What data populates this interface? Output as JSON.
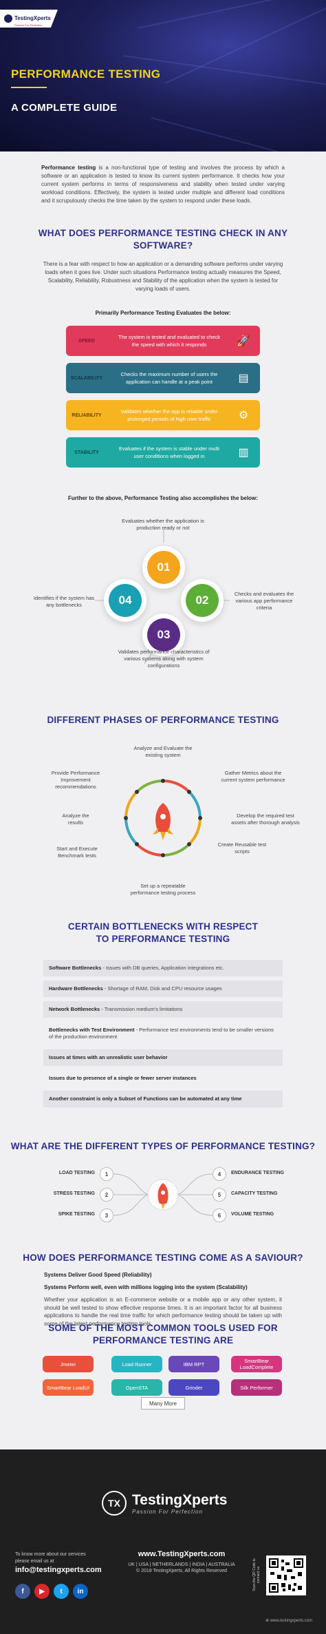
{
  "brand": {
    "name": "TestingXperts",
    "tagline": "Passion For Perfection"
  },
  "hero": {
    "title": "PERFORMANCE TESTING",
    "subtitle": "A COMPLETE GUIDE"
  },
  "intro": {
    "lead": "Performance testing",
    "text": " is a non-functional type of testing and involves the process by which a software or an application is tested to know its current system performance. It checks how your current system performs in terms of responsiveness and stability when tested under varying workload conditions. Effectively, the system is tested under multiple and different load conditions and it scrupulously checks the time taken by the system to respond under these loads."
  },
  "check": {
    "heading": "WHAT DOES PERFORMANCE TESTING CHECK IN ANY SOFTWARE?",
    "text": "There is a fear with respect to how an application or a demanding software performs under varying loads when it goes live. Under such situations Performance testing actually measures the Speed, Scalability, Reliability, Robustness and Stability of the application when the system is tested for varying loads of users.",
    "subheading": "Primarily Performance Testing Evaluates the below:",
    "items": [
      {
        "label": "SPEED",
        "desc": "The system is tested and evaluated to check the speed with which it responds",
        "icon": "rocket-icon",
        "color": "#e13a5a",
        "label_color": "#8c1030"
      },
      {
        "label": "SCALABILITY",
        "desc": "Checks the maximum number of users the application can handle at a peak point",
        "icon": "document-icon",
        "color": "#2b6f86",
        "label_color": "#0e3847"
      },
      {
        "label": "RELIABILITY",
        "desc": "Validates whether the app is reliable under prolonged periods of high user traffic",
        "icon": "gear-icon",
        "color": "#f6b520",
        "label_color": "#6b4600"
      },
      {
        "label": "STABILITY",
        "desc": "Evaluates if the system is stable under multi user conditions when logged in",
        "icon": "bar-chart-icon",
        "color": "#1eaaa3",
        "label_color": "#0a4a47"
      }
    ]
  },
  "accomplish": {
    "heading": "Further to the above, Performance Testing also accomplishes the below:",
    "items": [
      {
        "num": "01",
        "text": "Evaluates whether the application is production ready or not",
        "color": "#f4a51c"
      },
      {
        "num": "02",
        "text": "Checks and evaluates the various app performance criteria",
        "color": "#5cae37"
      },
      {
        "num": "03",
        "text": "Validates performance characteristics of various systems along with system configurations",
        "color": "#5b2c86"
      },
      {
        "num": "04",
        "text": "Identifies if the system has any bottlenecks",
        "color": "#1aa0b4"
      }
    ]
  },
  "phases": {
    "heading": "DIFFERENT PHASES OF PERFORMANCE TESTING",
    "items": [
      "Analyze and Evaluate the existing system",
      "Gather Metrics about the current system performance",
      "Develop the required test assets after thorough analysis",
      "Create Reusable test scripts",
      "Set up a repeatable performance testing process",
      "Start and Execute Benchmark tests",
      "Analyze the results",
      "Provide Performance Improvement recommendations"
    ]
  },
  "bottlenecks": {
    "heading_1": "CERTAIN BOTTLENECKS WITH RESPECT",
    "heading_2": "TO PERFORMANCE TESTING",
    "items": [
      {
        "title": "Software Bottlenecks",
        "text": "  -  Issues with DB queries, Application integrations etc."
      },
      {
        "title": "Hardware Bottlenecks",
        "text": "  -  Shortage of RAM, Disk and CPU resource usages"
      },
      {
        "title": "Network Bottlenecks",
        "text": "  -  Transmission medium's limitations"
      },
      {
        "title": "Bottlenecks with Test Environment",
        "text": "  -  Performance test environments tend to be smaller versions of the production environment"
      },
      {
        "title": "Issues at times with an unrealistic user behavior",
        "text": ""
      },
      {
        "title": "Issues due to presence of a single or fewer server instances",
        "text": ""
      },
      {
        "title": "Another constraint is only a Subset of Functions can be automated at any time",
        "text": ""
      }
    ]
  },
  "types": {
    "heading": "WHAT ARE THE DIFFERENT TYPES OF PERFORMANCE TESTING?",
    "left": [
      {
        "num": "1",
        "label": "LOAD TESTING"
      },
      {
        "num": "2",
        "label": "STRESS TESTING"
      },
      {
        "num": "3",
        "label": "SPIKE TESTING"
      }
    ],
    "right": [
      {
        "num": "4",
        "label": "ENDURANCE TESTING"
      },
      {
        "num": "5",
        "label": "CAPACITY TESTING"
      },
      {
        "num": "6",
        "label": "VOLUME TESTING"
      }
    ]
  },
  "saviour": {
    "heading": "HOW DOES PERFORMANCE TESTING COME AS A SAVIOUR?",
    "line1": "Systems Deliver Good Speed (Reliability)",
    "line2": "Systems Perform well, even with millions logging into the system (Scalability)",
    "text": "Whether your application is an E-commerce website or a mobile app or any other system, it should be well tested to show effective response times. It is an important factor for all business applications to handle the real time traffic for which performance testing should be taken up with some of the latest performance testing tools."
  },
  "tools": {
    "heading_1": "SOME OF THE MOST COMMON TOOLS USED FOR",
    "heading_2": "PERFORMANCE TESTING ARE",
    "items": [
      {
        "name": "Jmeter",
        "color": "#e9503a"
      },
      {
        "name": "Load Runner",
        "color": "#27b5c4"
      },
      {
        "name": "IBM RPT",
        "color": "#6b48b8"
      },
      {
        "name": "SmartBear LoadComplete",
        "color": "#d8357f"
      },
      {
        "name": "SmartBear LoadUI",
        "color": "#f2643a"
      },
      {
        "name": "OpenSTA",
        "color": "#29b6a8"
      },
      {
        "name": "Grinder",
        "color": "#4b46c2"
      },
      {
        "name": "Silk Performer",
        "color": "#b8307a"
      }
    ],
    "more_label": "Many More"
  },
  "footer": {
    "contact_line_1": "To know more about our services",
    "contact_line_2": "please email us at",
    "email": "info@testingxperts.com",
    "website": "www.TestingXperts.com",
    "locations": "UK | USA | NETHERLANDS | INDIA | AUSTRALIA",
    "copyright": "© 2018 TestingXperts, All Rights Reserved",
    "qr_caption": "Scan the QR Code to connect us",
    "bottom_url": "www.testingxperts.com",
    "social": [
      {
        "icon": "facebook-icon",
        "glyph": "f",
        "color": "#3b5998"
      },
      {
        "icon": "youtube-icon",
        "glyph": "▶",
        "color": "#d9262c"
      },
      {
        "icon": "twitter-icon",
        "glyph": "t",
        "color": "#1da1f2"
      },
      {
        "icon": "linkedin-icon",
        "glyph": "in",
        "color": "#0a66c2"
      }
    ]
  }
}
